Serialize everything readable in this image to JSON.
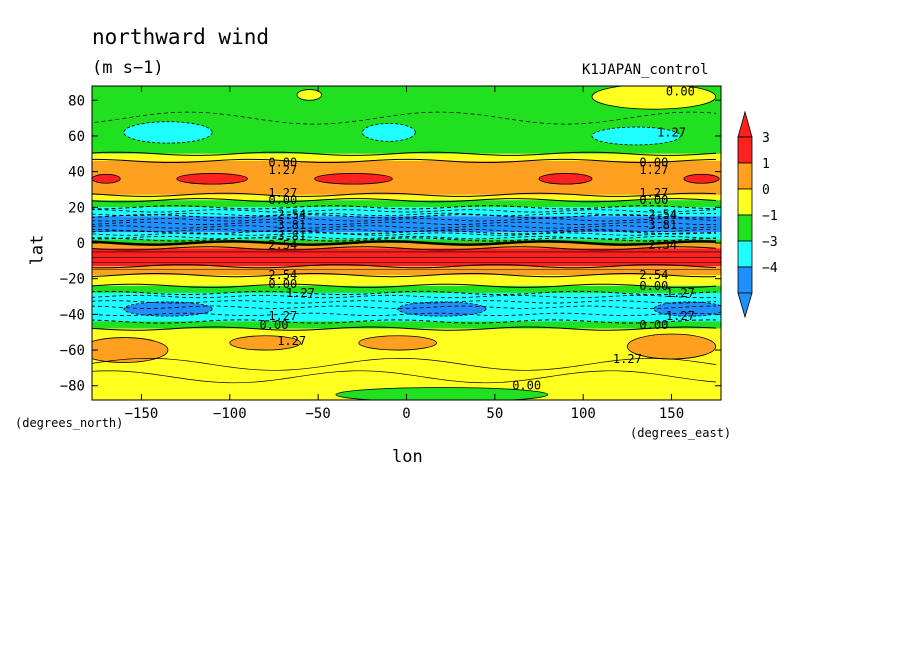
{
  "chart_data": {
    "type": "heatmap",
    "title": "northward wind",
    "units": "(m s−1)",
    "dataset": "K1JAPAN_control",
    "xlabel": "lon",
    "ylabel": "lat",
    "xlabel_units": "(degrees_east)",
    "ylabel_units": "(degrees_north)",
    "xlim": [
      -178,
      178
    ],
    "ylim": [
      -88,
      88
    ],
    "x_ticks": [
      -150,
      -100,
      -50,
      0,
      50,
      100,
      150
    ],
    "x_tick_labels": [
      "−150",
      "−100",
      "−50",
      "0",
      "50",
      "100",
      "150"
    ],
    "y_ticks": [
      80,
      60,
      40,
      20,
      0,
      -20,
      -40,
      -60,
      -80
    ],
    "y_tick_labels": [
      "80",
      "60",
      "40",
      "20",
      "0",
      "−20",
      "−40",
      "−60",
      "−80"
    ],
    "colorbar": {
      "labels": [
        "3",
        "1",
        "0",
        "−1",
        "−3",
        "−4"
      ],
      "colors": [
        "#ff2020",
        "#ffa020",
        "#ffff20",
        "#20e020",
        "#20ffff",
        "#2090ff"
      ]
    },
    "zonal_bands": [
      {
        "lat_top": 88,
        "lat_bottom": 50,
        "color": "#20e020"
      },
      {
        "lat_top": 50,
        "lat_bottom": 46,
        "color": "#ffff20"
      },
      {
        "lat_top": 46,
        "lat_bottom": 27,
        "color": "#ffa020"
      },
      {
        "lat_top": 27,
        "lat_bottom": 24,
        "color": "#ffff20"
      },
      {
        "lat_top": 24,
        "lat_bottom": 20,
        "color": "#20e020"
      },
      {
        "lat_top": 20,
        "lat_bottom": 15,
        "color": "#20ffff"
      },
      {
        "lat_top": 15,
        "lat_bottom": 6,
        "color": "#2090ff"
      },
      {
        "lat_top": 6,
        "lat_bottom": 2,
        "color": "#20ffff"
      },
      {
        "lat_top": 2,
        "lat_bottom": 0,
        "color": "#20e020"
      },
      {
        "lat_top": 0,
        "lat_bottom": -3,
        "color": "#ffa020"
      },
      {
        "lat_top": -3,
        "lat_bottom": -13,
        "color": "#ff2020"
      },
      {
        "lat_top": -13,
        "lat_bottom": -18,
        "color": "#ffa020"
      },
      {
        "lat_top": -18,
        "lat_bottom": -24,
        "color": "#ffff20"
      },
      {
        "lat_top": -24,
        "lat_bottom": -28,
        "color": "#20e020"
      },
      {
        "lat_top": -28,
        "lat_bottom": -44,
        "color": "#20ffff"
      },
      {
        "lat_top": -44,
        "lat_bottom": -48,
        "color": "#20e020"
      },
      {
        "lat_top": -48,
        "lat_bottom": -88,
        "color": "#ffff20"
      }
    ],
    "blobs": [
      {
        "lon": -55,
        "lat": 83,
        "rlon": 7,
        "rlat": 3,
        "color": "#ffff20"
      },
      {
        "lon": 140,
        "lat": 82,
        "rlon": 35,
        "rlat": 7,
        "color": "#ffff20"
      },
      {
        "lon": -135,
        "lat": 62,
        "rlon": 25,
        "rlat": 6,
        "color": "#20ffff"
      },
      {
        "lon": -10,
        "lat": 62,
        "rlon": 15,
        "rlat": 5,
        "color": "#20ffff"
      },
      {
        "lon": 130,
        "lat": 60,
        "rlon": 25,
        "rlat": 5,
        "color": "#20ffff"
      },
      {
        "lon": -170,
        "lat": 36,
        "rlon": 8,
        "rlat": 2.5,
        "color": "#ff2020"
      },
      {
        "lon": -110,
        "lat": 36,
        "rlon": 20,
        "rlat": 3,
        "color": "#ff2020"
      },
      {
        "lon": -30,
        "lat": 36,
        "rlon": 22,
        "rlat": 3,
        "color": "#ff2020"
      },
      {
        "lon": 90,
        "lat": 36,
        "rlon": 15,
        "rlat": 3,
        "color": "#ff2020"
      },
      {
        "lon": 167,
        "lat": 36,
        "rlon": 10,
        "rlat": 2.5,
        "color": "#ff2020"
      },
      {
        "lon": -135,
        "lat": -37,
        "rlon": 25,
        "rlat": 4,
        "color": "#2090ff"
      },
      {
        "lon": 20,
        "lat": -37,
        "rlon": 25,
        "rlat": 4,
        "color": "#2090ff"
      },
      {
        "lon": 160,
        "lat": -37,
        "rlon": 20,
        "rlat": 4,
        "color": "#2090ff"
      },
      {
        "lon": -160,
        "lat": -60,
        "rlon": 25,
        "rlat": 7,
        "color": "#ffa020"
      },
      {
        "lon": -80,
        "lat": -56,
        "rlon": 20,
        "rlat": 4,
        "color": "#ffa020"
      },
      {
        "lon": -5,
        "lat": -56,
        "rlon": 22,
        "rlat": 4,
        "color": "#ffa020"
      },
      {
        "lon": 150,
        "lat": -58,
        "rlon": 25,
        "rlat": 7,
        "color": "#ffa020"
      },
      {
        "lon": 20,
        "lat": -85,
        "rlon": 60,
        "rlat": 4,
        "color": "#20e020"
      }
    ],
    "contour_labels": [
      {
        "lon": 155,
        "lat": 85,
        "text": "0.00"
      },
      {
        "lon": 150,
        "lat": 62,
        "text": "1.27"
      },
      {
        "lon": -70,
        "lat": 45,
        "text": "0.00"
      },
      {
        "lon": -70,
        "lat": 41,
        "text": "1.27"
      },
      {
        "lon": 140,
        "lat": 45,
        "text": "0.00"
      },
      {
        "lon": 140,
        "lat": 41,
        "text": "1.27"
      },
      {
        "lon": -70,
        "lat": 28,
        "text": "1.27"
      },
      {
        "lon": -70,
        "lat": 24,
        "text": "0.00"
      },
      {
        "lon": 140,
        "lat": 28,
        "text": "1.27"
      },
      {
        "lon": 140,
        "lat": 24,
        "text": "0.00"
      },
      {
        "lon": -65,
        "lat": 16,
        "text": "2.54"
      },
      {
        "lon": -65,
        "lat": 10,
        "text": "3.81"
      },
      {
        "lon": -65,
        "lat": 4,
        "text": "3.81"
      },
      {
        "lon": -70,
        "lat": -1,
        "text": "2.54"
      },
      {
        "lon": 145,
        "lat": 16,
        "text": "2.54"
      },
      {
        "lon": 145,
        "lat": 10,
        "text": "3.81"
      },
      {
        "lon": 145,
        "lat": -1,
        "text": "2.54"
      },
      {
        "lon": -70,
        "lat": -18,
        "text": "2.54"
      },
      {
        "lon": -70,
        "lat": -23,
        "text": "0.00"
      },
      {
        "lon": -60,
        "lat": -28,
        "text": "1.27"
      },
      {
        "lon": 140,
        "lat": -18,
        "text": "2.54"
      },
      {
        "lon": 140,
        "lat": -24,
        "text": "0.00"
      },
      {
        "lon": 155,
        "lat": -28,
        "text": "1.27"
      },
      {
        "lon": -70,
        "lat": -41,
        "text": "1.27"
      },
      {
        "lon": -75,
        "lat": -46,
        "text": "0.00"
      },
      {
        "lon": 140,
        "lat": -46,
        "text": "0.00"
      },
      {
        "lon": 155,
        "lat": -41,
        "text": "1.27"
      },
      {
        "lon": -65,
        "lat": -55,
        "text": "1.27"
      },
      {
        "lon": 125,
        "lat": -65,
        "text": "1.27"
      },
      {
        "lon": 68,
        "lat": -80,
        "text": "0.00"
      }
    ]
  }
}
